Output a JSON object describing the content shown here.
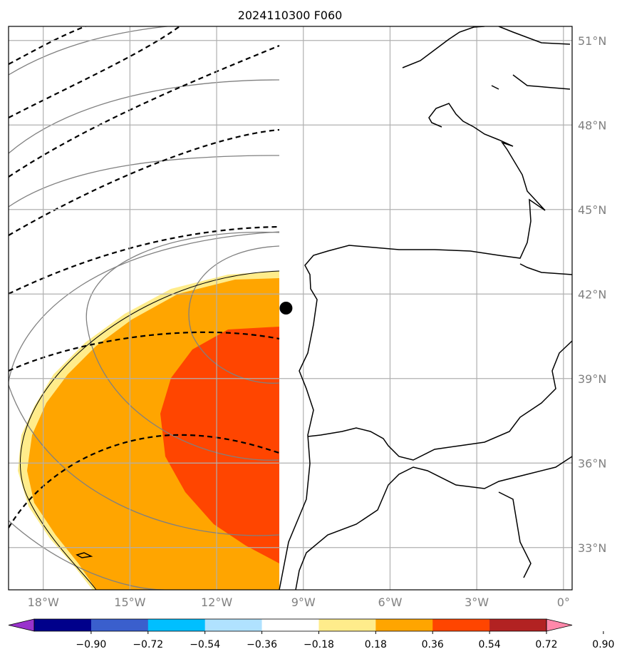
{
  "title": "2024110300 F060",
  "map": {
    "lon_range": [
      -19.2,
      0.3
    ],
    "lat_range": [
      31.5,
      51.5
    ],
    "lat_ticks": [
      {
        "value": 51,
        "label": "51°N"
      },
      {
        "value": 48,
        "label": "48°N"
      },
      {
        "value": 45,
        "label": "45°N"
      },
      {
        "value": 42,
        "label": "42°N"
      },
      {
        "value": 39,
        "label": "39°N"
      },
      {
        "value": 36,
        "label": "36°N"
      },
      {
        "value": 33,
        "label": "33°N"
      }
    ],
    "lon_ticks": [
      {
        "value": -18,
        "label": "18°W"
      },
      {
        "value": -15,
        "label": "15°W"
      },
      {
        "value": -12,
        "label": "12°W"
      },
      {
        "value": -9,
        "label": "9°W"
      },
      {
        "value": -6,
        "label": "6°W"
      },
      {
        "value": -3,
        "label": "3°W"
      },
      {
        "value": 0,
        "label": "0°"
      }
    ],
    "grid_color": "#b0b0b0",
    "tick_label_color": "#808080",
    "marker": {
      "lon": -9.6,
      "lat": 41.5,
      "color": "#000000"
    }
  },
  "colorbar": {
    "colors": [
      "#9932cc",
      "#00008b",
      "#3a5fcd",
      "#00bfff",
      "#b0e2ff",
      "#ffffff",
      "#ffec8b",
      "#ffa500",
      "#ff4500",
      "#b22222",
      "#ff88aa"
    ],
    "labels": [
      "−0.90",
      "−0.72",
      "−0.54",
      "−0.36",
      "−0.18",
      "0.18",
      "0.36",
      "0.54",
      "0.72",
      "0.90"
    ]
  },
  "field_colors": {
    "light": "#ffec8b",
    "mid": "#ffa500",
    "high": "#ff4500",
    "grey_contour": "#808080",
    "dashed_contour": "#000000"
  }
}
